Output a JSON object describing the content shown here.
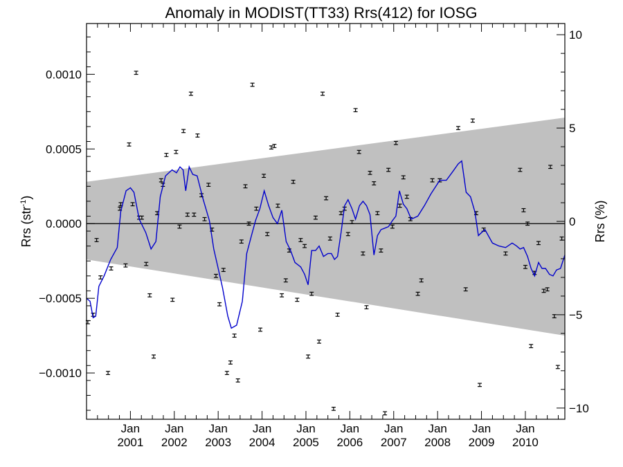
{
  "chart_data": {
    "type": "scatter",
    "title": "Anomaly in MODIST(TT33) Rrs(412) for IOSG",
    "ylabel_left": {
      "main": "Rrs (str",
      "sup": "-1",
      "close": ")"
    },
    "ylabel_right": "Rrs (%)",
    "xlim": [
      2000.0,
      2010.9
    ],
    "ylim_left": [
      -0.00131,
      0.00134
    ],
    "ylim_right": [
      -10.6,
      10.6
    ],
    "yticks_left": [
      {
        "value": 0.001,
        "label": "0.0010"
      },
      {
        "value": 0.0005,
        "label": "0.0005"
      },
      {
        "value": 0.0,
        "label": "0.0000"
      },
      {
        "value": -0.0005,
        "label": "−0.0005"
      },
      {
        "value": -0.001,
        "label": "−0.0010"
      }
    ],
    "yticks_right": [
      {
        "value": 10,
        "label": "10"
      },
      {
        "value": 5,
        "label": "5"
      },
      {
        "value": 0,
        "label": "0"
      },
      {
        "value": -5,
        "label": "−5"
      },
      {
        "value": -10,
        "label": "−10"
      }
    ],
    "xticks": [
      {
        "value": 2001.0,
        "month": "Jan",
        "year": "2001"
      },
      {
        "value": 2002.0,
        "month": "Jan",
        "year": "2002"
      },
      {
        "value": 2003.0,
        "month": "Jan",
        "year": "2003"
      },
      {
        "value": 2004.0,
        "month": "Jan",
        "year": "2004"
      },
      {
        "value": 2005.0,
        "month": "Jan",
        "year": "2005"
      },
      {
        "value": 2006.0,
        "month": "Jan",
        "year": "2006"
      },
      {
        "value": 2007.0,
        "month": "Jan",
        "year": "2007"
      },
      {
        "value": 2008.0,
        "month": "Jan",
        "year": "2008"
      },
      {
        "value": 2009.0,
        "month": "Jan",
        "year": "2009"
      },
      {
        "value": 2010.0,
        "month": "Jan",
        "year": "2010"
      }
    ],
    "band": {
      "x": [
        2000.0,
        2010.9
      ],
      "upper": [
        0.00028,
        0.00071
      ],
      "lower": [
        -0.00024,
        -0.00075
      ],
      "color": "#c0c0c0"
    },
    "zero_line": 0,
    "points": [
      [
        2000.03,
        -0.00066
      ],
      [
        2000.15,
        -0.00061
      ],
      [
        2000.23,
        -0.00011
      ],
      [
        2000.32,
        -0.00036
      ],
      [
        2000.49,
        -0.001
      ],
      [
        2000.56,
        -0.0003
      ],
      [
        2000.76,
        0.0001
      ],
      [
        2000.78,
        0.00013
      ],
      [
        2000.89,
        -0.00028
      ],
      [
        2000.97,
        0.00053
      ],
      [
        2001.05,
        0.00013
      ],
      [
        2001.13,
        0.00101
      ],
      [
        2001.2,
        4e-05
      ],
      [
        2001.26,
        4e-05
      ],
      [
        2001.36,
        -0.00027
      ],
      [
        2001.44,
        -0.00048
      ],
      [
        2001.53,
        -0.00089
      ],
      [
        2001.61,
        7e-05
      ],
      [
        2001.7,
        0.00029
      ],
      [
        2001.74,
        0.00026
      ],
      [
        2001.82,
        0.00046
      ],
      [
        2001.96,
        -0.00051
      ],
      [
        2002.04,
        0.00048
      ],
      [
        2002.12,
        -2e-05
      ],
      [
        2002.21,
        0.00062
      ],
      [
        2002.3,
        6e-05
      ],
      [
        2002.38,
        0.00087
      ],
      [
        2002.45,
        6e-05
      ],
      [
        2002.53,
        0.00059
      ],
      [
        2002.62,
        0.00019
      ],
      [
        2002.69,
        3e-05
      ],
      [
        2002.78,
        0.00026
      ],
      [
        2002.86,
        -4e-05
      ],
      [
        2002.95,
        -0.00035
      ],
      [
        2003.03,
        -0.00054
      ],
      [
        2003.12,
        -0.00031
      ],
      [
        2003.2,
        -0.001
      ],
      [
        2003.28,
        -0.00093
      ],
      [
        2003.37,
        -0.00075
      ],
      [
        2003.45,
        -0.00105
      ],
      [
        2003.53,
        -0.00012
      ],
      [
        2003.62,
        0.00025
      ],
      [
        2003.7,
        0.0
      ],
      [
        2003.78,
        0.00093
      ],
      [
        2003.87,
        0.0001
      ],
      [
        2003.96,
        -0.00071
      ],
      [
        2004.04,
        0.00032
      ],
      [
        2004.12,
        -7e-05
      ],
      [
        2004.21,
        0.00051
      ],
      [
        2004.28,
        0.00052
      ],
      [
        2004.36,
        0.00012
      ],
      [
        2004.45,
        -0.00048
      ],
      [
        2004.54,
        -0.00038
      ],
      [
        2004.62,
        -0.00018
      ],
      [
        2004.71,
        0.00028
      ],
      [
        2004.8,
        -0.00051
      ],
      [
        2004.88,
        -0.00011
      ],
      [
        2004.97,
        -0.00015
      ],
      [
        2005.05,
        -0.00089
      ],
      [
        2005.13,
        -0.00047
      ],
      [
        2005.22,
        4e-05
      ],
      [
        2005.3,
        -0.00079
      ],
      [
        2005.38,
        0.00087
      ],
      [
        2005.46,
        0.00017
      ],
      [
        2005.55,
        -0.0001
      ],
      [
        2005.63,
        -0.00124
      ],
      [
        2005.72,
        -0.00061
      ],
      [
        2005.8,
        7e-05
      ],
      [
        2005.88,
        0.0001
      ],
      [
        2005.96,
        -7e-05
      ],
      [
        2006.05,
        1e-05
      ],
      [
        2006.13,
        0.00076
      ],
      [
        2006.21,
        0.00048
      ],
      [
        2006.3,
        -0.0002
      ],
      [
        2006.38,
        -0.00056
      ],
      [
        2006.46,
        0.00034
      ],
      [
        2006.55,
        0.00027
      ],
      [
        2006.63,
        7e-05
      ],
      [
        2006.71,
        -0.00018
      ],
      [
        2006.8,
        -0.00127
      ],
      [
        2006.88,
        0.00036
      ],
      [
        2006.97,
        -2e-05
      ],
      [
        2007.05,
        0.00054
      ],
      [
        2007.14,
        0.00012
      ],
      [
        2007.22,
        0.00031
      ],
      [
        2007.3,
        0.00018
      ],
      [
        2007.38,
        3e-05
      ],
      [
        2007.55,
        -0.00047
      ],
      [
        2007.63,
        -0.00038
      ],
      [
        2007.88,
        0.00029
      ],
      [
        2008.05,
        0.00029
      ],
      [
        2008.47,
        0.00064
      ],
      [
        2008.64,
        -0.00044
      ],
      [
        2008.8,
        0.00069
      ],
      [
        2008.88,
        7e-05
      ],
      [
        2008.96,
        -0.00108
      ],
      [
        2009.05,
        -4e-05
      ],
      [
        2009.55,
        -0.0002
      ],
      [
        2009.88,
        0.00036
      ],
      [
        2009.96,
        9e-05
      ],
      [
        2010.0,
        -0.00029
      ],
      [
        2010.05,
        0.0
      ],
      [
        2010.13,
        -0.00082
      ],
      [
        2010.21,
        -0.00033
      ],
      [
        2010.3,
        -0.00013
      ],
      [
        2010.42,
        -0.00045
      ],
      [
        2010.5,
        -0.00044
      ],
      [
        2010.57,
        0.00038
      ],
      [
        2010.66,
        -0.00062
      ],
      [
        2010.74,
        -0.00096
      ],
      [
        2010.83,
        -0.0001
      ]
    ],
    "error_bar": 6e-06,
    "line": {
      "color": "#0000cc",
      "points": [
        [
          2000.0,
          -0.0005
        ],
        [
          2000.08,
          -0.00052
        ],
        [
          2000.15,
          -0.00063
        ],
        [
          2000.21,
          -0.00062
        ],
        [
          2000.28,
          -0.00042
        ],
        [
          2000.4,
          -0.00035
        ],
        [
          2000.55,
          -0.00024
        ],
        [
          2000.7,
          -0.00016
        ],
        [
          2000.78,
          8e-05
        ],
        [
          2000.9,
          0.00022
        ],
        [
          2001.0,
          0.00024
        ],
        [
          2001.08,
          0.00021
        ],
        [
          2001.2,
          3e-05
        ],
        [
          2001.35,
          -6e-05
        ],
        [
          2001.47,
          -0.00017
        ],
        [
          2001.58,
          -0.00012
        ],
        [
          2001.68,
          0.00018
        ],
        [
          2001.8,
          0.00032
        ],
        [
          2001.95,
          0.00036
        ],
        [
          2002.05,
          0.00034
        ],
        [
          2002.13,
          0.00038
        ],
        [
          2002.2,
          0.00036
        ],
        [
          2002.26,
          0.00022
        ],
        [
          2002.34,
          0.00038
        ],
        [
          2002.42,
          0.00033
        ],
        [
          2002.52,
          0.00032
        ],
        [
          2002.65,
          0.00017
        ],
        [
          2002.8,
          2e-05
        ],
        [
          2002.9,
          -0.00017
        ],
        [
          2003.0,
          -0.0003
        ],
        [
          2003.1,
          -0.00043
        ],
        [
          2003.22,
          -0.00062
        ],
        [
          2003.3,
          -0.0007
        ],
        [
          2003.42,
          -0.00068
        ],
        [
          2003.55,
          -0.00052
        ],
        [
          2003.65,
          -0.0002
        ],
        [
          2003.75,
          -9e-05
        ],
        [
          2003.85,
          2e-05
        ],
        [
          2003.95,
          0.0001
        ],
        [
          2004.05,
          0.00022
        ],
        [
          2004.15,
          0.00012
        ],
        [
          2004.25,
          4e-05
        ],
        [
          2004.35,
          0.0
        ],
        [
          2004.45,
          9e-05
        ],
        [
          2004.55,
          -0.00012
        ],
        [
          2004.65,
          -0.00018
        ],
        [
          2004.75,
          -0.00026
        ],
        [
          2004.88,
          -0.00029
        ],
        [
          2004.97,
          -0.00034
        ],
        [
          2005.05,
          -0.00041
        ],
        [
          2005.13,
          -0.00018
        ],
        [
          2005.22,
          -0.00018
        ],
        [
          2005.3,
          -0.00015
        ],
        [
          2005.4,
          -0.00022
        ],
        [
          2005.5,
          -0.0002
        ],
        [
          2005.58,
          -0.0002
        ],
        [
          2005.65,
          -0.00024
        ],
        [
          2005.72,
          -0.00022
        ],
        [
          2005.8,
          -6e-05
        ],
        [
          2005.88,
          0.00012
        ],
        [
          2005.96,
          0.00016
        ],
        [
          2006.05,
          0.0001
        ],
        [
          2006.13,
          3e-05
        ],
        [
          2006.22,
          0.00012
        ],
        [
          2006.3,
          0.00015
        ],
        [
          2006.38,
          0.00012
        ],
        [
          2006.46,
          6e-05
        ],
        [
          2006.55,
          -0.00021
        ],
        [
          2006.63,
          -8e-05
        ],
        [
          2006.71,
          -4e-05
        ],
        [
          2006.8,
          -3e-05
        ],
        [
          2006.88,
          -2e-05
        ],
        [
          2006.97,
          2e-05
        ],
        [
          2007.05,
          5e-05
        ],
        [
          2007.13,
          0.00022
        ],
        [
          2007.22,
          0.00013
        ],
        [
          2007.3,
          0.0001
        ],
        [
          2007.4,
          3e-05
        ],
        [
          2007.55,
          5e-05
        ],
        [
          2007.7,
          0.00012
        ],
        [
          2007.85,
          0.0002
        ],
        [
          2008.05,
          0.00029
        ],
        [
          2008.2,
          0.00029
        ],
        [
          2008.35,
          0.00035
        ],
        [
          2008.47,
          0.0004
        ],
        [
          2008.55,
          0.00042
        ],
        [
          2008.65,
          0.00021
        ],
        [
          2008.75,
          0.00018
        ],
        [
          2008.85,
          8e-05
        ],
        [
          2008.93,
          -8e-05
        ],
        [
          2009.0,
          -6e-05
        ],
        [
          2009.08,
          -4e-05
        ],
        [
          2009.25,
          -0.00013
        ],
        [
          2009.4,
          -0.00015
        ],
        [
          2009.55,
          -0.00016
        ],
        [
          2009.7,
          -0.00013
        ],
        [
          2009.8,
          -0.00015
        ],
        [
          2009.88,
          -0.00017
        ],
        [
          2009.96,
          -0.00016
        ],
        [
          2010.05,
          -0.00022
        ],
        [
          2010.13,
          -0.0003
        ],
        [
          2010.21,
          -0.00035
        ],
        [
          2010.3,
          -0.00026
        ],
        [
          2010.38,
          -0.0003
        ],
        [
          2010.46,
          -0.0003
        ],
        [
          2010.55,
          -0.00034
        ],
        [
          2010.63,
          -0.00035
        ],
        [
          2010.71,
          -0.00031
        ],
        [
          2010.8,
          -0.0003
        ],
        [
          2010.9,
          -0.00021
        ]
      ]
    }
  }
}
